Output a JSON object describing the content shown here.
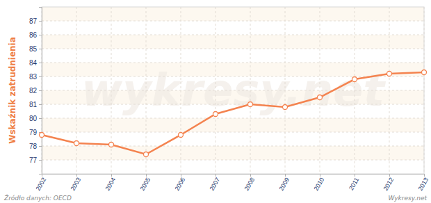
{
  "chart_data": {
    "type": "line",
    "y_label": "Wskaźnik zatrudnienia",
    "source": "Źródło danych: OECD",
    "credit": "Wykresy.net",
    "watermark": "wykresy.net",
    "categories": [
      "2002",
      "2003",
      "2004",
      "2005",
      "2006",
      "2007",
      "2008",
      "2009",
      "2010",
      "2011",
      "2012",
      "2013"
    ],
    "values": [
      78.8,
      78.2,
      78.1,
      77.4,
      78.8,
      80.3,
      81.0,
      80.8,
      81.5,
      82.8,
      83.2,
      83.3
    ],
    "color": "#f4834f",
    "marker": "circle",
    "ylim": [
      76,
      88
    ],
    "yticks": [
      77,
      78,
      79,
      80,
      81,
      82,
      83,
      84,
      85,
      86,
      87
    ],
    "grid": true
  }
}
